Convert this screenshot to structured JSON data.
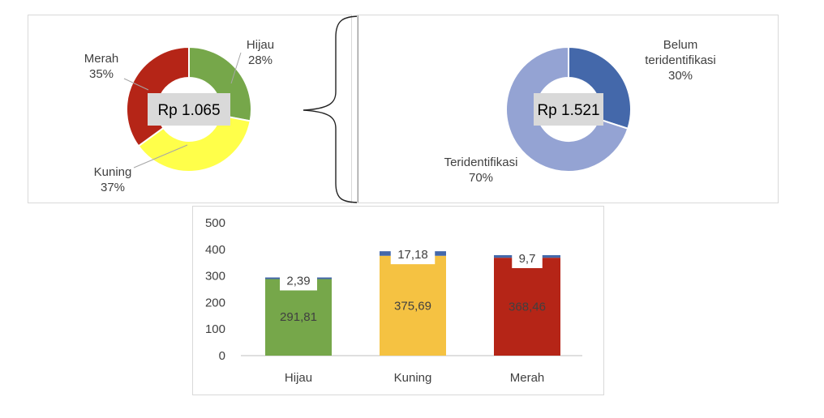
{
  "chart_data": [
    {
      "type": "pie",
      "center_label": "Rp 1.065",
      "slices": [
        {
          "name": "Hijau",
          "value": 28,
          "pct_label": "28%",
          "color": "#76a74a"
        },
        {
          "name": "Kuning",
          "value": 37,
          "pct_label": "37%",
          "color": "#ffff4a"
        },
        {
          "name": "Merah",
          "value": 35,
          "pct_label": "35%",
          "color": "#b52517"
        }
      ]
    },
    {
      "type": "pie",
      "center_label": "Rp 1.521",
      "slices": [
        {
          "name": "Belum teridentifikasi",
          "lines": [
            "Belum",
            "teridentifikasi"
          ],
          "value": 30,
          "pct_label": "30%",
          "color": "#4468aa"
        },
        {
          "name": "Teridentifikasi",
          "lines": [
            "Teridentifikasi"
          ],
          "value": 70,
          "pct_label": "70%",
          "color": "#94a3d3"
        }
      ]
    },
    {
      "type": "bar",
      "stacked": true,
      "categories": [
        "Hijau",
        "Kuning",
        "Merah"
      ],
      "colors": [
        "#76a74a",
        "#f5c242",
        "#b52517"
      ],
      "top_color": "#4468aa",
      "series": [
        {
          "values": [
            291.81,
            375.69,
            368.46
          ],
          "labels": [
            "291,81",
            "375,69",
            "368,46"
          ]
        },
        {
          "values": [
            2.39,
            17.18,
            9.7
          ],
          "labels": [
            "2,39",
            "17,18",
            "9,7"
          ]
        }
      ],
      "ylim": [
        0,
        500
      ],
      "yticks": [
        0,
        100,
        200,
        300,
        400,
        500
      ],
      "grid": false
    }
  ]
}
